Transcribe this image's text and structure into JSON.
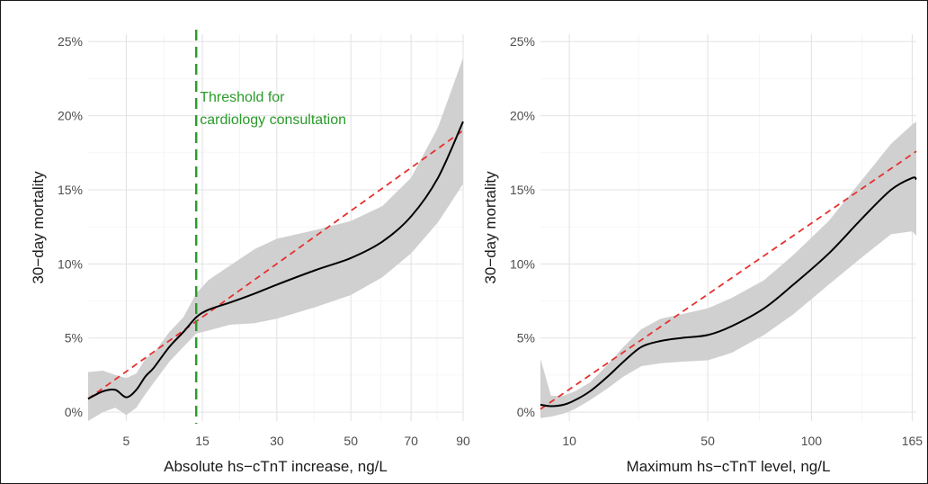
{
  "colors": {
    "ribbon": "#d0d0d0",
    "spline": "#000000",
    "linear_fit": "#e5312f",
    "threshold": "#2a9a2a",
    "grid": "#e3e3e3"
  },
  "chart_data": [
    {
      "type": "line",
      "panel": "left",
      "xlabel": "Absolute hs−cTnT increase, ng/L",
      "ylabel": "30−day mortality",
      "x_scale": "sqrt",
      "xlim": [
        2,
        90
      ],
      "ylim": [
        -0.6,
        25.5
      ],
      "x_ticks": [
        5,
        15,
        30,
        50,
        70,
        90
      ],
      "x_tick_labels": [
        "5",
        "15",
        "30",
        "50",
        "70",
        "90"
      ],
      "y_ticks": [
        0,
        5,
        10,
        15,
        20,
        25
      ],
      "y_tick_labels": [
        "0%",
        "5%",
        "10%",
        "15%",
        "20%",
        "25%"
      ],
      "grid": true,
      "threshold": {
        "x": 14,
        "label_lines": [
          "Threshold for",
          "cardiology consultation"
        ]
      },
      "series": [
        {
          "role": "spline",
          "x": [
            2,
            3,
            4,
            5,
            6,
            7,
            8,
            10,
            12,
            14,
            16,
            20,
            25,
            30,
            40,
            50,
            60,
            70,
            80,
            90
          ],
          "y": [
            0.9,
            1.4,
            1.5,
            1.0,
            1.5,
            2.4,
            3.0,
            4.4,
            5.4,
            6.4,
            6.9,
            7.4,
            8.0,
            8.6,
            9.6,
            10.4,
            11.5,
            13.2,
            15.8,
            19.6
          ]
        },
        {
          "role": "ci_lower",
          "x": [
            2,
            3,
            4,
            5,
            6,
            7,
            8,
            10,
            12,
            14,
            16,
            20,
            25,
            30,
            40,
            50,
            60,
            70,
            80,
            90
          ],
          "y": [
            -0.6,
            0.0,
            0.3,
            -0.2,
            0.3,
            1.2,
            2.0,
            3.4,
            4.4,
            5.3,
            5.5,
            5.9,
            6.0,
            6.3,
            7.1,
            7.9,
            9.1,
            10.7,
            12.8,
            15.4
          ]
        },
        {
          "role": "ci_upper",
          "x": [
            2,
            3,
            4,
            5,
            6,
            7,
            8,
            10,
            12,
            14,
            16,
            20,
            25,
            30,
            40,
            50,
            60,
            70,
            80,
            90
          ],
          "y": [
            2.7,
            2.8,
            2.5,
            2.3,
            2.6,
            3.6,
            4.0,
            5.4,
            6.4,
            8.0,
            8.9,
            9.9,
            11.0,
            11.7,
            12.3,
            12.9,
            13.9,
            15.8,
            19.2,
            23.9
          ]
        },
        {
          "role": "linear_fit",
          "x": [
            2,
            90
          ],
          "y": [
            0.9,
            19.0
          ]
        }
      ]
    },
    {
      "type": "line",
      "panel": "right",
      "xlabel": "Maximum hs−cTnT level, ng/L",
      "ylabel": "30−day mortality",
      "x_scale": "sqrt",
      "xlim": [
        5.5,
        168
      ],
      "ylim": [
        -0.6,
        25.5
      ],
      "x_ticks": [
        10,
        50,
        100,
        165
      ],
      "x_tick_labels": [
        "10",
        "50",
        "100",
        "165"
      ],
      "y_ticks": [
        0,
        5,
        10,
        15,
        20,
        25
      ],
      "y_tick_labels": [
        "0%",
        "5%",
        "10%",
        "15%",
        "20%",
        "25%"
      ],
      "grid": true,
      "series": [
        {
          "role": "spline",
          "x": [
            5.5,
            7,
            9,
            11,
            14,
            18,
            22,
            27,
            33,
            40,
            50,
            60,
            75,
            90,
            110,
            130,
            150,
            165,
            168
          ],
          "y": [
            0.5,
            0.4,
            0.5,
            0.8,
            1.4,
            2.4,
            3.4,
            4.4,
            4.8,
            5.0,
            5.2,
            5.8,
            7.0,
            8.6,
            10.7,
            13.0,
            15.0,
            15.8,
            15.7
          ]
        },
        {
          "role": "ci_lower",
          "x": [
            5.5,
            7,
            9,
            11,
            14,
            18,
            22,
            27,
            33,
            40,
            50,
            60,
            75,
            90,
            110,
            130,
            150,
            165,
            168
          ],
          "y": [
            -0.4,
            -0.3,
            -0.1,
            0.2,
            0.8,
            1.6,
            2.4,
            3.1,
            3.3,
            3.4,
            3.5,
            4.0,
            5.2,
            6.6,
            8.6,
            10.4,
            12.0,
            12.2,
            11.9
          ]
        },
        {
          "role": "ci_upper",
          "x": [
            5.5,
            7,
            9,
            11,
            14,
            18,
            22,
            27,
            33,
            40,
            50,
            60,
            75,
            90,
            110,
            130,
            150,
            165,
            168
          ],
          "y": [
            3.6,
            1.1,
            1.1,
            1.4,
            2.0,
            3.2,
            4.4,
            5.6,
            6.3,
            6.6,
            7.0,
            7.7,
            8.9,
            10.6,
            12.9,
            15.6,
            18.1,
            19.4,
            19.6
          ]
        },
        {
          "role": "linear_fit",
          "x": [
            5.5,
            168
          ],
          "y": [
            0.2,
            17.6
          ]
        }
      ]
    }
  ]
}
